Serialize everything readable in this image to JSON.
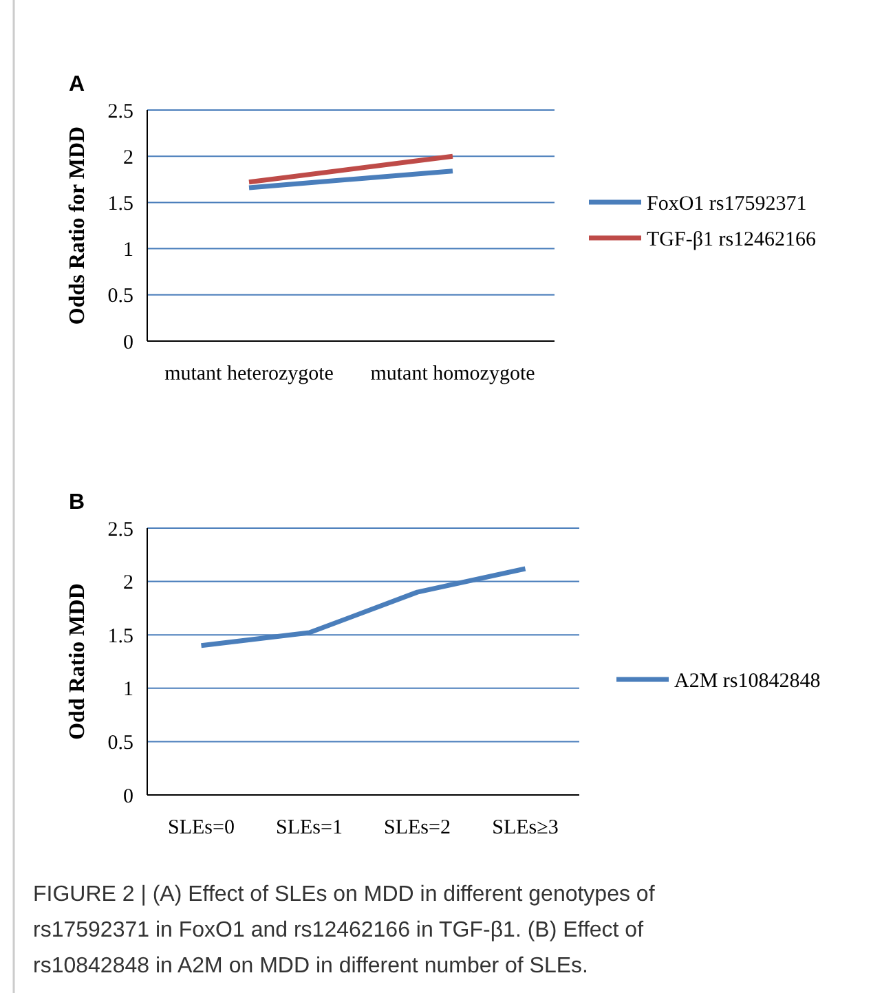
{
  "chart_data": [
    {
      "type": "line",
      "annotations": [
        "A"
      ],
      "ylabel": "Odds Ratio for MDD",
      "categories": [
        "mutant heterozygote",
        "mutant homozygote"
      ],
      "series": [
        {
          "name": "FoxO1 rs17592371",
          "color": "#4a7ebb",
          "values": [
            1.66,
            1.84
          ]
        },
        {
          "name": "TGF-β1 rs12462166",
          "color": "#be4b48",
          "values": [
            1.72,
            2.0
          ]
        }
      ],
      "ylim": [
        0,
        2.5
      ],
      "yticks": [
        0,
        0.5,
        1,
        1.5,
        2,
        2.5
      ],
      "grid": "y",
      "legend": "right",
      "marker": "none",
      "line_style": "solid"
    },
    {
      "type": "line",
      "annotations": [
        "B",
        "FIGURE 2 | (A) Effect of SLEs on MDD in different genotypes of rs17592371 in FoxO1 and rs12462166 in TGF-β1. (B) Effect of rs10842848 in A2M on MDD in different number of SLEs."
      ],
      "ylabel": "Odd Ratio MDD",
      "categories": [
        "SLEs=0",
        "SLEs=1",
        "SLEs=2",
        "SLEs≥3"
      ],
      "series": [
        {
          "name": "A2M rs10842848",
          "color": "#4a7ebb",
          "values": [
            1.4,
            1.52,
            1.9,
            2.12
          ]
        }
      ],
      "ylim": [
        0,
        2.5
      ],
      "yticks": [
        0,
        0.5,
        1,
        1.5,
        2,
        2.5
      ],
      "grid": "y",
      "legend": "right",
      "marker": "none",
      "line_style": "solid"
    }
  ]
}
